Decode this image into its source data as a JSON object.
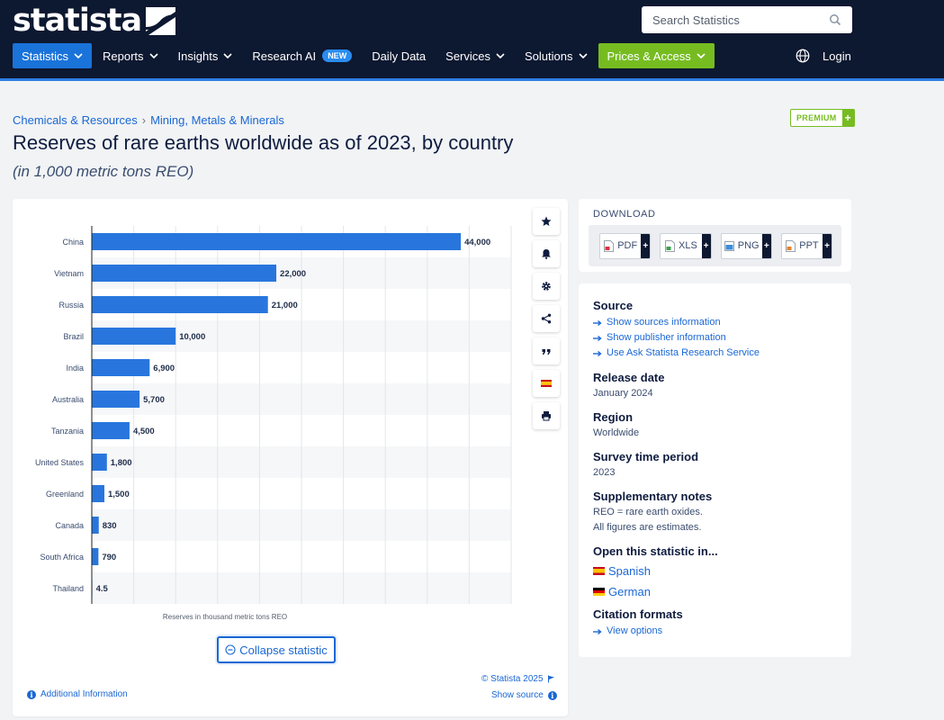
{
  "header": {
    "logo_text": "statista",
    "search_placeholder": "Search Statistics",
    "nav": [
      {
        "label": "Statistics",
        "dropdown": true
      },
      {
        "label": "Reports",
        "dropdown": true
      },
      {
        "label": "Insights",
        "dropdown": true
      },
      {
        "label": "Research AI",
        "badge": "NEW"
      },
      {
        "label": "Daily Data"
      },
      {
        "label": "Services",
        "dropdown": true
      },
      {
        "label": "Solutions",
        "dropdown": true
      },
      {
        "label": "Prices & Access",
        "dropdown": true
      }
    ],
    "login": "Login"
  },
  "breadcrumb": [
    "Chemicals & Resources",
    "Mining, Metals & Minerals"
  ],
  "premium_label": "PREMIUM",
  "premium_plus": "+",
  "title": "Reserves of rare earths worldwide as of 2023, by country",
  "subtitle": "(in 1,000 metric tons REO)",
  "chart_data": {
    "type": "bar",
    "orientation": "horizontal",
    "categories": [
      "China",
      "Vietnam",
      "Russia",
      "Brazil",
      "India",
      "Australia",
      "Tanzania",
      "United States",
      "Greenland",
      "Canada",
      "South Africa",
      "Thailand"
    ],
    "values": [
      44000,
      22000,
      21000,
      10000,
      6900,
      5700,
      4500,
      1800,
      1500,
      830,
      790,
      4.5
    ],
    "data_labels": [
      "44,000",
      "22,000",
      "21,000",
      "10,000",
      "6,900",
      "5,700",
      "4,500",
      "1,800",
      "1,500",
      "830",
      "790",
      "4.5"
    ],
    "xlabel": "Reserves in thousand metric tons REO",
    "xlim": [
      0,
      50000
    ],
    "grid": true,
    "bar_color": "#2876dd"
  },
  "chart_footer": {
    "collapse_label": "Collapse statistic",
    "copyright": "© Statista 2025",
    "additional_info": "Additional Information",
    "show_source": "Show source"
  },
  "tools": [
    "star-icon",
    "bell-icon",
    "gear-icon",
    "share-icon",
    "quote-icon",
    "spain-flag-icon",
    "print-icon"
  ],
  "download": {
    "title": "DOWNLOAD",
    "formats": [
      "PDF",
      "XLS",
      "PNG",
      "PPT"
    ],
    "plus": "+"
  },
  "info": {
    "source_title": "Source",
    "source_links": [
      "Show sources information",
      "Show publisher information",
      "Use Ask Statista Research Service"
    ],
    "release_title": "Release date",
    "release_value": "January 2024",
    "region_title": "Region",
    "region_value": "Worldwide",
    "survey_title": "Survey time period",
    "survey_value": "2023",
    "notes_title": "Supplementary notes",
    "notes": [
      "REO = rare earth oxides.",
      "All figures are estimates."
    ],
    "open_title": "Open this statistic in...",
    "languages": [
      "Spanish",
      "German"
    ],
    "citation_title": "Citation formats",
    "citation_link": "View options"
  }
}
